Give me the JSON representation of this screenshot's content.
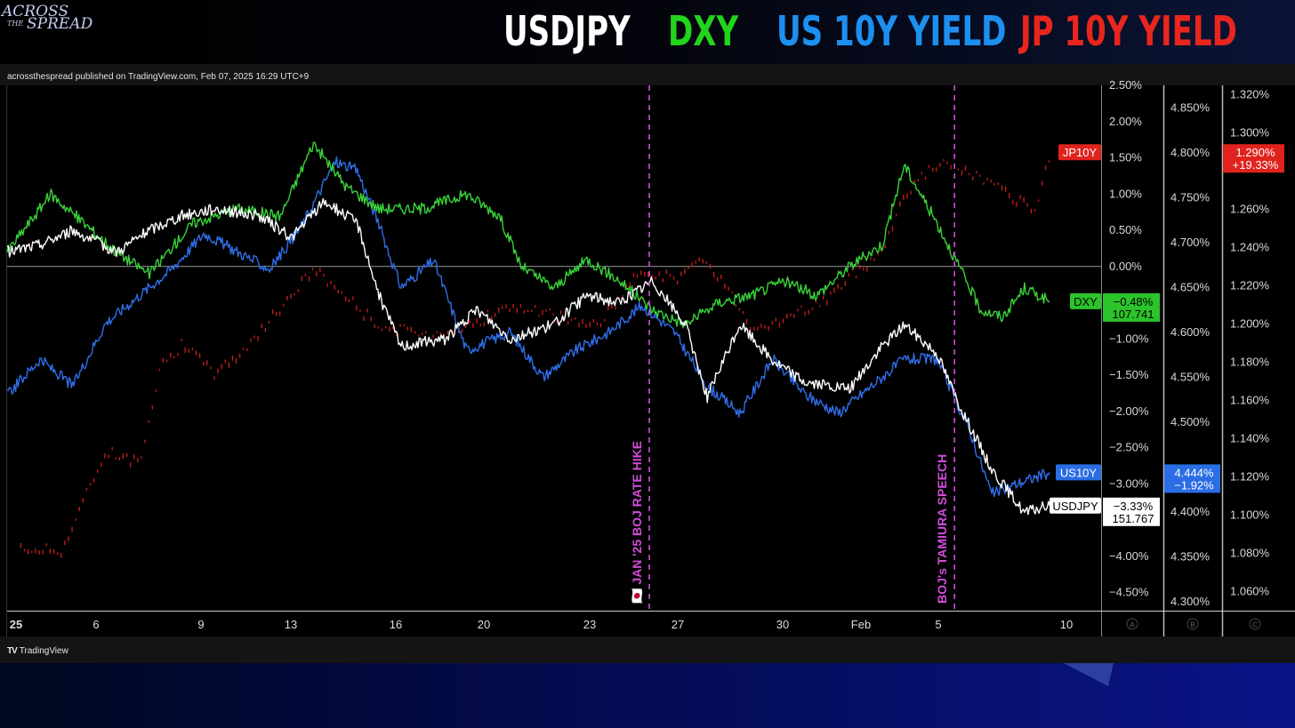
{
  "logo": {
    "line1": "ACROSS",
    "line2": "THE",
    "line3": "SPREAD"
  },
  "headlines": [
    {
      "text": "USDJPY",
      "color": "#ffffff"
    },
    {
      "text": "DXY",
      "color": "#22d41c"
    },
    {
      "text": "US 10Y YIELD",
      "color": "#1d8ff0"
    },
    {
      "text": "JP 10Y YIELD",
      "color": "#e8261e"
    }
  ],
  "published": "acrossthespread published on TradingView.com, Feb 07, 2025 16:29 UTC+9",
  "footer": {
    "brand": "TradingView",
    "brand_icon": "tradingview-logo-icon"
  },
  "chart_data": {
    "type": "line",
    "x_ticks": [
      "25",
      "6",
      "9",
      "13",
      "16",
      "20",
      "23",
      "27",
      "30",
      "Feb",
      "5",
      "10"
    ],
    "axis_a": {
      "ticks": [
        "2.50%",
        "2.00%",
        "1.50%",
        "1.00%",
        "0.50%",
        "0.00%",
        "−1.00%",
        "−1.50%",
        "−2.00%",
        "−2.50%",
        "−3.00%",
        "−4.00%",
        "−4.50%"
      ],
      "ylim": [
        -4.75,
        2.5
      ],
      "footer": "A"
    },
    "axis_b": {
      "ticks": [
        "4.850%",
        "4.800%",
        "4.750%",
        "4.700%",
        "4.650%",
        "4.600%",
        "4.550%",
        "4.500%",
        "4.400%",
        "4.350%",
        "4.300%"
      ],
      "ylim": [
        4.29,
        4.875
      ],
      "footer": "B"
    },
    "axis_c": {
      "ticks": [
        "1.320%",
        "1.300%",
        "1.260%",
        "1.240%",
        "1.220%",
        "1.200%",
        "1.180%",
        "1.160%",
        "1.140%",
        "1.120%",
        "1.100%",
        "1.080%",
        "1.060%"
      ],
      "ylim": [
        1.05,
        1.325
      ],
      "footer": "C"
    },
    "zero_line": 0,
    "events": [
      {
        "label": "🇯🇵 JAN '25 BOJ RATE HIKE",
        "x": 0.587
      },
      {
        "label": "BOJ's TAMIURA SPEECH",
        "x": 0.866
      }
    ],
    "series": [
      {
        "name": "USDJPY",
        "color": "#ffffff",
        "axis": "A",
        "label": "USDJPY",
        "value": "−3.33%",
        "value2": "151.767",
        "x": [
          0,
          0.03,
          0.06,
          0.1,
          0.13,
          0.16,
          0.19,
          0.23,
          0.26,
          0.29,
          0.32,
          0.34,
          0.36,
          0.4,
          0.43,
          0.46,
          0.5,
          0.53,
          0.56,
          0.59,
          0.62,
          0.64,
          0.67,
          0.7,
          0.73,
          0.77,
          0.8,
          0.82,
          0.85,
          0.87,
          0.9,
          0.93,
          0.953
        ],
        "y": [
          0.2,
          0.3,
          0.5,
          0.2,
          0.5,
          0.7,
          0.8,
          0.7,
          0.4,
          0.9,
          0.6,
          -0.4,
          -1.1,
          -1.0,
          -0.6,
          -1.0,
          -0.8,
          -0.4,
          -0.5,
          -0.2,
          -0.8,
          -1.8,
          -0.8,
          -1.3,
          -1.6,
          -1.7,
          -1.1,
          -0.8,
          -1.2,
          -1.9,
          -2.8,
          -3.4,
          -3.3
        ]
      },
      {
        "name": "DXY",
        "color": "#3ad23a",
        "axis": "A",
        "label": "DXY",
        "value": "−0.48%",
        "value2": "107.741",
        "x": [
          0,
          0.04,
          0.07,
          0.1,
          0.13,
          0.17,
          0.21,
          0.25,
          0.28,
          0.31,
          0.34,
          0.38,
          0.42,
          0.45,
          0.47,
          0.5,
          0.53,
          0.56,
          0.59,
          0.62,
          0.65,
          0.68,
          0.71,
          0.74,
          0.77,
          0.8,
          0.82,
          0.85,
          0.87,
          0.89,
          0.91,
          0.93,
          0.953
        ],
        "y": [
          0.2,
          1.0,
          0.6,
          0.2,
          -0.1,
          0.6,
          0.8,
          0.7,
          1.7,
          1.1,
          0.8,
          0.8,
          1.0,
          0.7,
          0.0,
          -0.3,
          0.1,
          -0.2,
          -0.6,
          -0.8,
          -0.5,
          -0.4,
          -0.2,
          -0.4,
          0.0,
          0.3,
          1.4,
          0.6,
          0.0,
          -0.6,
          -0.7,
          -0.3,
          -0.48
        ]
      },
      {
        "name": "US10Y",
        "color": "#2f6ee8",
        "axis": "B",
        "label": "US10Y",
        "value": "4.444%",
        "value2": "−1.92%",
        "x": [
          0,
          0.03,
          0.06,
          0.09,
          0.12,
          0.15,
          0.18,
          0.21,
          0.24,
          0.27,
          0.3,
          0.32,
          0.34,
          0.36,
          0.39,
          0.42,
          0.46,
          0.49,
          0.52,
          0.55,
          0.58,
          0.61,
          0.64,
          0.67,
          0.7,
          0.73,
          0.76,
          0.79,
          0.82,
          0.85,
          0.88,
          0.9,
          0.92,
          0.953
        ],
        "y": [
          4.53,
          4.57,
          4.54,
          4.61,
          4.64,
          4.67,
          4.71,
          4.69,
          4.67,
          4.72,
          4.79,
          4.78,
          4.72,
          4.65,
          4.68,
          4.58,
          4.6,
          4.55,
          4.58,
          4.6,
          4.63,
          4.6,
          4.54,
          4.51,
          4.57,
          4.53,
          4.51,
          4.54,
          4.57,
          4.57,
          4.49,
          4.42,
          4.43,
          4.444
        ]
      },
      {
        "name": "JP10Y",
        "color": "#cc1e1a",
        "axis": "C",
        "label": "JP10Y",
        "value": "1.290%",
        "value2": "+19.33%",
        "x": [
          0.012,
          0.05,
          0.09,
          0.12,
          0.14,
          0.16,
          0.19,
          0.22,
          0.25,
          0.28,
          0.31,
          0.34,
          0.38,
          0.42,
          0.46,
          0.5,
          0.54,
          0.58,
          0.61,
          0.64,
          0.68,
          0.72,
          0.75,
          0.78,
          0.8,
          0.82,
          0.85,
          0.88,
          0.91,
          0.94,
          0.953
        ],
        "y": [
          1.083,
          1.083,
          1.135,
          1.128,
          1.18,
          1.19,
          1.175,
          1.19,
          1.21,
          1.23,
          1.215,
          1.2,
          1.195,
          1.2,
          1.21,
          1.205,
          1.2,
          1.23,
          1.225,
          1.235,
          1.2,
          1.205,
          1.215,
          1.23,
          1.24,
          1.27,
          1.285,
          1.28,
          1.27,
          1.26,
          1.29
        ]
      }
    ]
  }
}
